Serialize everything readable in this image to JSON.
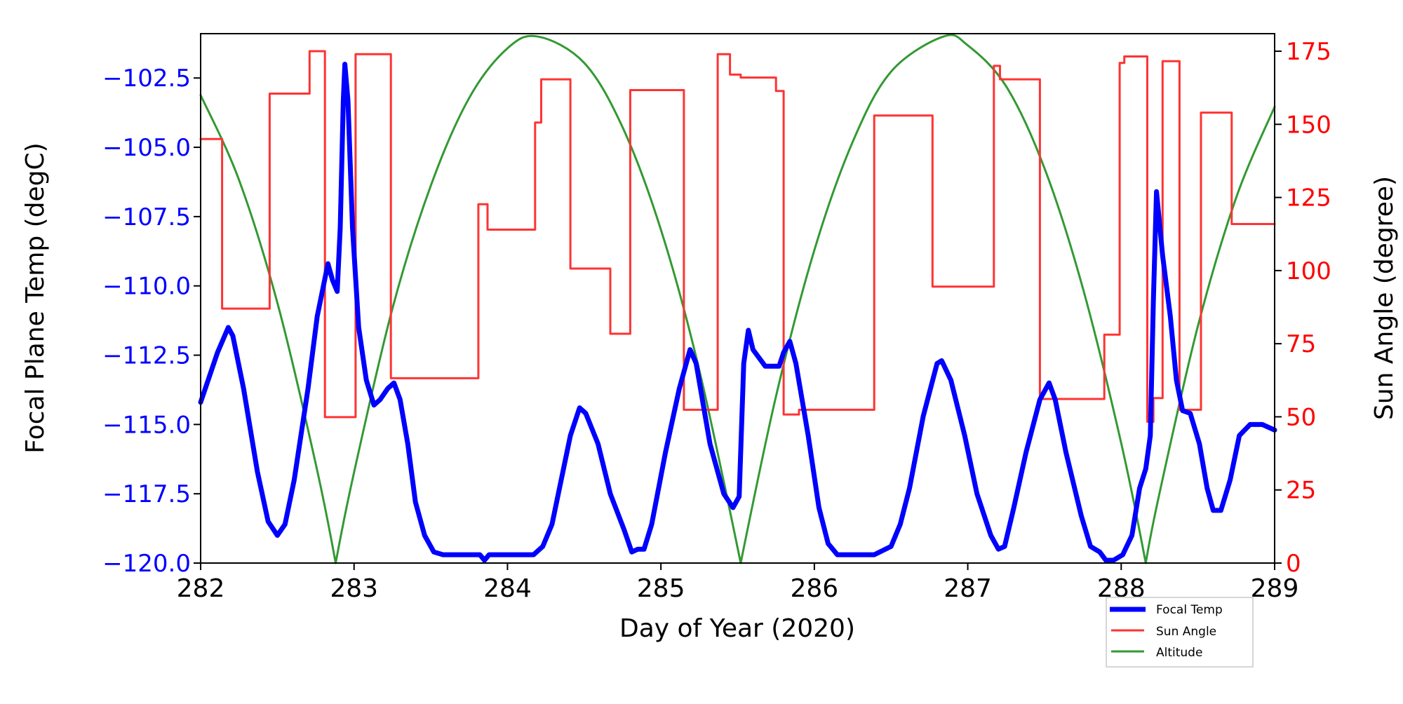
{
  "chart_data": {
    "type": "line",
    "xlabel": "Day of Year (2020)",
    "ylabel_left": "Focal Plane Temp (degC)",
    "ylabel_right": "Sun Angle (degree)",
    "xlim": [
      282,
      289
    ],
    "ylim_left": [
      -120,
      -100.9
    ],
    "ylim_right": [
      0,
      181
    ],
    "x_ticks": [
      282,
      283,
      284,
      285,
      286,
      287,
      288,
      289
    ],
    "x_tick_labels": [
      "282",
      "283",
      "284",
      "285",
      "286",
      "287",
      "288",
      "289"
    ],
    "left_ticks": [
      -120,
      -117.5,
      -115,
      -112.5,
      -110,
      -107.5,
      -105,
      -102.5
    ],
    "left_tick_labels": [
      "−120.0",
      "−117.5",
      "−115.0",
      "−112.5",
      "−110.0",
      "−107.5",
      "−105.0",
      "−102.5"
    ],
    "right_ticks": [
      0,
      25,
      50,
      75,
      100,
      125,
      150,
      175
    ],
    "right_tick_labels": [
      "0",
      "25",
      "50",
      "75",
      "100",
      "125",
      "150",
      "175"
    ],
    "grid": false,
    "legend_placement": "below-right",
    "colors": {
      "focal": "#0000ff",
      "sun": "#ff3333",
      "altitude": "#339933",
      "left_ticks": "#0000ff",
      "right_ticks": "#ff0000"
    },
    "series": [
      {
        "name": "Focal Temp",
        "axis": "left",
        "points": [
          [
            282.0,
            -114.2
          ],
          [
            282.11,
            -112.4
          ],
          [
            282.18,
            -111.5
          ],
          [
            282.21,
            -111.8
          ],
          [
            282.28,
            -113.7
          ],
          [
            282.37,
            -116.7
          ],
          [
            282.44,
            -118.5
          ],
          [
            282.5,
            -119.0
          ],
          [
            282.55,
            -118.6
          ],
          [
            282.61,
            -117.0
          ],
          [
            282.7,
            -113.7
          ],
          [
            282.76,
            -111.1
          ],
          [
            282.83,
            -109.2
          ],
          [
            282.86,
            -109.8
          ],
          [
            282.89,
            -110.2
          ],
          [
            282.91,
            -107.9
          ],
          [
            282.93,
            -103.3
          ],
          [
            282.94,
            -102.0
          ],
          [
            282.96,
            -103.3
          ],
          [
            282.99,
            -107.9
          ],
          [
            283.03,
            -111.5
          ],
          [
            283.08,
            -113.4
          ],
          [
            283.13,
            -114.3
          ],
          [
            283.17,
            -114.1
          ],
          [
            283.22,
            -113.7
          ],
          [
            283.26,
            -113.5
          ],
          [
            283.3,
            -114.1
          ],
          [
            283.35,
            -115.7
          ],
          [
            283.4,
            -117.8
          ],
          [
            283.46,
            -119.0
          ],
          [
            283.52,
            -119.6
          ],
          [
            283.58,
            -119.7
          ],
          [
            283.82,
            -119.7
          ],
          [
            283.85,
            -119.9
          ],
          [
            283.88,
            -119.7
          ],
          [
            284.17,
            -119.7
          ],
          [
            284.23,
            -119.4
          ],
          [
            284.29,
            -118.6
          ],
          [
            284.35,
            -117.0
          ],
          [
            284.41,
            -115.4
          ],
          [
            284.47,
            -114.4
          ],
          [
            284.51,
            -114.6
          ],
          [
            284.59,
            -115.7
          ],
          [
            284.67,
            -117.5
          ],
          [
            284.76,
            -118.8
          ],
          [
            284.81,
            -119.6
          ],
          [
            284.85,
            -119.5
          ],
          [
            284.89,
            -119.5
          ],
          [
            284.94,
            -118.6
          ],
          [
            285.03,
            -116.0
          ],
          [
            285.12,
            -113.7
          ],
          [
            285.19,
            -112.3
          ],
          [
            285.23,
            -112.8
          ],
          [
            285.32,
            -115.7
          ],
          [
            285.41,
            -117.5
          ],
          [
            285.47,
            -118.0
          ],
          [
            285.51,
            -117.6
          ],
          [
            285.54,
            -112.8
          ],
          [
            285.57,
            -111.6
          ],
          [
            285.6,
            -112.3
          ],
          [
            285.68,
            -112.9
          ],
          [
            285.77,
            -112.9
          ],
          [
            285.8,
            -112.4
          ],
          [
            285.84,
            -112.0
          ],
          [
            285.88,
            -112.8
          ],
          [
            285.96,
            -115.4
          ],
          [
            286.03,
            -118.0
          ],
          [
            286.09,
            -119.3
          ],
          [
            286.15,
            -119.7
          ],
          [
            286.39,
            -119.7
          ],
          [
            286.5,
            -119.4
          ],
          [
            286.56,
            -118.6
          ],
          [
            286.62,
            -117.3
          ],
          [
            286.71,
            -114.7
          ],
          [
            286.8,
            -112.8
          ],
          [
            286.83,
            -112.7
          ],
          [
            286.89,
            -113.4
          ],
          [
            286.98,
            -115.4
          ],
          [
            287.06,
            -117.5
          ],
          [
            287.15,
            -119.0
          ],
          [
            287.2,
            -119.5
          ],
          [
            287.24,
            -119.4
          ],
          [
            287.3,
            -118.0
          ],
          [
            287.38,
            -116.0
          ],
          [
            287.47,
            -114.1
          ],
          [
            287.53,
            -113.5
          ],
          [
            287.57,
            -114.1
          ],
          [
            287.64,
            -116.0
          ],
          [
            287.74,
            -118.3
          ],
          [
            287.8,
            -119.4
          ],
          [
            287.86,
            -119.6
          ],
          [
            287.9,
            -119.9
          ],
          [
            287.95,
            -119.9
          ],
          [
            288.01,
            -119.7
          ],
          [
            288.07,
            -119.0
          ],
          [
            288.12,
            -117.3
          ],
          [
            288.16,
            -116.6
          ],
          [
            288.19,
            -115.4
          ],
          [
            288.21,
            -110.5
          ],
          [
            288.23,
            -106.6
          ],
          [
            288.27,
            -108.9
          ],
          [
            288.32,
            -111.1
          ],
          [
            288.36,
            -113.4
          ],
          [
            288.4,
            -114.5
          ],
          [
            288.45,
            -114.6
          ],
          [
            288.51,
            -115.7
          ],
          [
            288.56,
            -117.3
          ],
          [
            288.6,
            -118.1
          ],
          [
            288.65,
            -118.1
          ],
          [
            288.71,
            -117.0
          ],
          [
            288.77,
            -115.4
          ],
          [
            288.84,
            -115.0
          ],
          [
            288.92,
            -115.0
          ],
          [
            289.0,
            -115.2
          ]
        ]
      },
      {
        "name": "Sun Angle",
        "axis": "right",
        "step": true,
        "points": [
          [
            282.0,
            145.0
          ],
          [
            282.14,
            87.0
          ],
          [
            282.45,
            160.5
          ],
          [
            282.71,
            175.0
          ],
          [
            282.81,
            49.9
          ],
          [
            283.01,
            174.0
          ],
          [
            283.24,
            63.2
          ],
          [
            283.81,
            122.7
          ],
          [
            283.87,
            114.0
          ],
          [
            284.18,
            150.6
          ],
          [
            284.22,
            165.4
          ],
          [
            284.41,
            100.7
          ],
          [
            284.67,
            78.4
          ],
          [
            284.8,
            161.7
          ],
          [
            285.15,
            52.4
          ],
          [
            285.37,
            174.0
          ],
          [
            285.45,
            167.0
          ],
          [
            285.52,
            166.0
          ],
          [
            285.75,
            161.4
          ],
          [
            285.8,
            50.8
          ],
          [
            285.9,
            52.4
          ],
          [
            286.39,
            153.0
          ],
          [
            286.77,
            94.5
          ],
          [
            287.17,
            170.0
          ],
          [
            287.21,
            165.4
          ],
          [
            287.47,
            56.1
          ],
          [
            287.89,
            78.1
          ],
          [
            287.99,
            171.0
          ],
          [
            288.02,
            173.2
          ],
          [
            288.17,
            48.3
          ],
          [
            288.21,
            56.4
          ],
          [
            288.27,
            171.6
          ],
          [
            288.38,
            52.4
          ],
          [
            288.52,
            154.0
          ],
          [
            288.72,
            115.9
          ],
          [
            289.0,
            115.9
          ]
        ]
      },
      {
        "name": "Altitude",
        "axis": "right",
        "points": [
          [
            282.0,
            160
          ],
          [
            282.25,
            131
          ],
          [
            282.5,
            89
          ],
          [
            282.75,
            34
          ],
          [
            282.88,
            0
          ],
          [
            283.0,
            31
          ],
          [
            283.25,
            87
          ],
          [
            283.5,
            129
          ],
          [
            283.75,
            159
          ],
          [
            284.0,
            176
          ],
          [
            284.2,
            180
          ],
          [
            284.5,
            171
          ],
          [
            284.75,
            149
          ],
          [
            285.0,
            114
          ],
          [
            285.25,
            66
          ],
          [
            285.52,
            0
          ],
          [
            285.75,
            57
          ],
          [
            286.0,
            107
          ],
          [
            286.25,
            144
          ],
          [
            286.5,
            168
          ],
          [
            286.84,
            180
          ],
          [
            287.0,
            177
          ],
          [
            287.25,
            163
          ],
          [
            287.5,
            135
          ],
          [
            287.75,
            94
          ],
          [
            288.0,
            41
          ],
          [
            288.16,
            0
          ],
          [
            288.25,
            24
          ],
          [
            288.5,
            81
          ],
          [
            288.75,
            125
          ],
          [
            289.0,
            156
          ]
        ]
      }
    ],
    "legend": [
      "Focal Temp",
      "Sun Angle",
      "Altitude"
    ]
  }
}
